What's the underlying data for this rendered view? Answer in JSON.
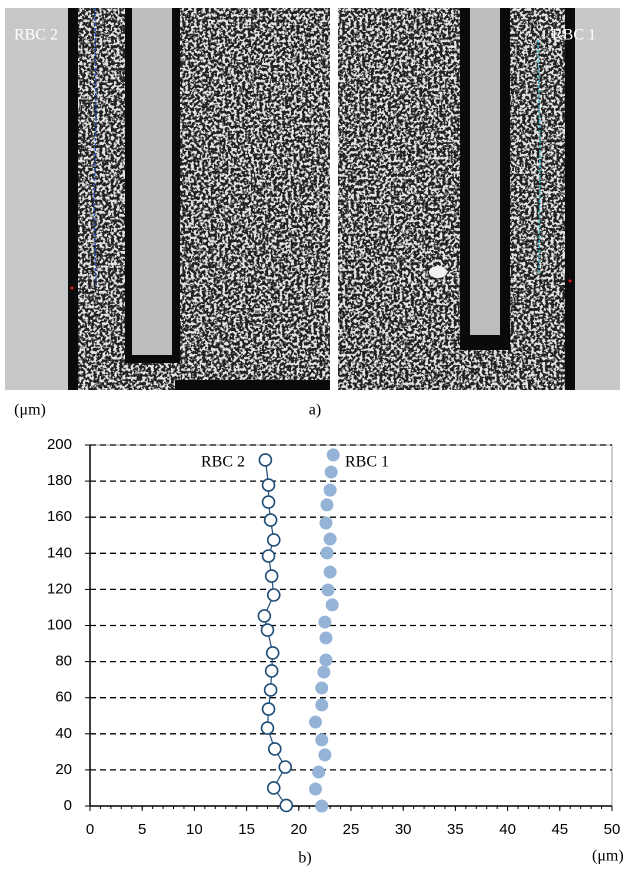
{
  "panel_a": {
    "label": "a)",
    "images": [
      {
        "label": "RBC 2"
      },
      {
        "label": "RBC 1"
      }
    ]
  },
  "chart_data": {
    "type": "scatter",
    "label": "b)",
    "ylabel": "(μm)",
    "xlabel": "(μm)",
    "annotations": [
      "RBC 2",
      "RBC 1"
    ],
    "xlim": [
      0,
      50
    ],
    "xticks": [
      0,
      5,
      10,
      15,
      20,
      25,
      30,
      35,
      40,
      45,
      50
    ],
    "ylim": [
      0,
      200
    ],
    "yticks": [
      0,
      20,
      40,
      60,
      80,
      100,
      120,
      140,
      160,
      180,
      200
    ],
    "grid": true,
    "series": [
      {
        "name": "RBC 2",
        "color": "#1f4e79",
        "marker": "open",
        "line": true,
        "x": [
          16.8,
          17.1,
          17.1,
          17.3,
          17.6,
          17.1,
          17.4,
          17.6,
          16.7,
          17.0,
          17.5,
          17.4,
          17.3,
          17.1,
          17.0,
          17.7,
          18.7,
          17.6,
          18.8
        ],
        "values": [
          191.7,
          177.8,
          168.4,
          158.4,
          147.4,
          138.5,
          127.4,
          116.9,
          105.3,
          97.5,
          84.8,
          74.8,
          64.3,
          53.7,
          43.2,
          31.6,
          21.6,
          10.0,
          0.3
        ]
      },
      {
        "name": "RBC 1",
        "color": "#95b3d7",
        "marker": "filled",
        "line": false,
        "x": [
          23.3,
          23.1,
          23.0,
          22.7,
          22.6,
          23.0,
          22.7,
          23.0,
          22.8,
          23.2,
          22.5,
          22.6,
          22.6,
          22.4,
          22.2,
          22.2,
          21.6,
          22.2,
          22.5,
          21.9,
          21.6,
          22.2
        ],
        "values": [
          194.5,
          185.0,
          175.0,
          166.8,
          156.8,
          147.9,
          140.2,
          129.6,
          119.7,
          111.4,
          101.9,
          93.1,
          80.9,
          74.2,
          65.4,
          56.0,
          46.5,
          36.6,
          28.3,
          18.8,
          9.4,
          0.0
        ]
      }
    ]
  }
}
